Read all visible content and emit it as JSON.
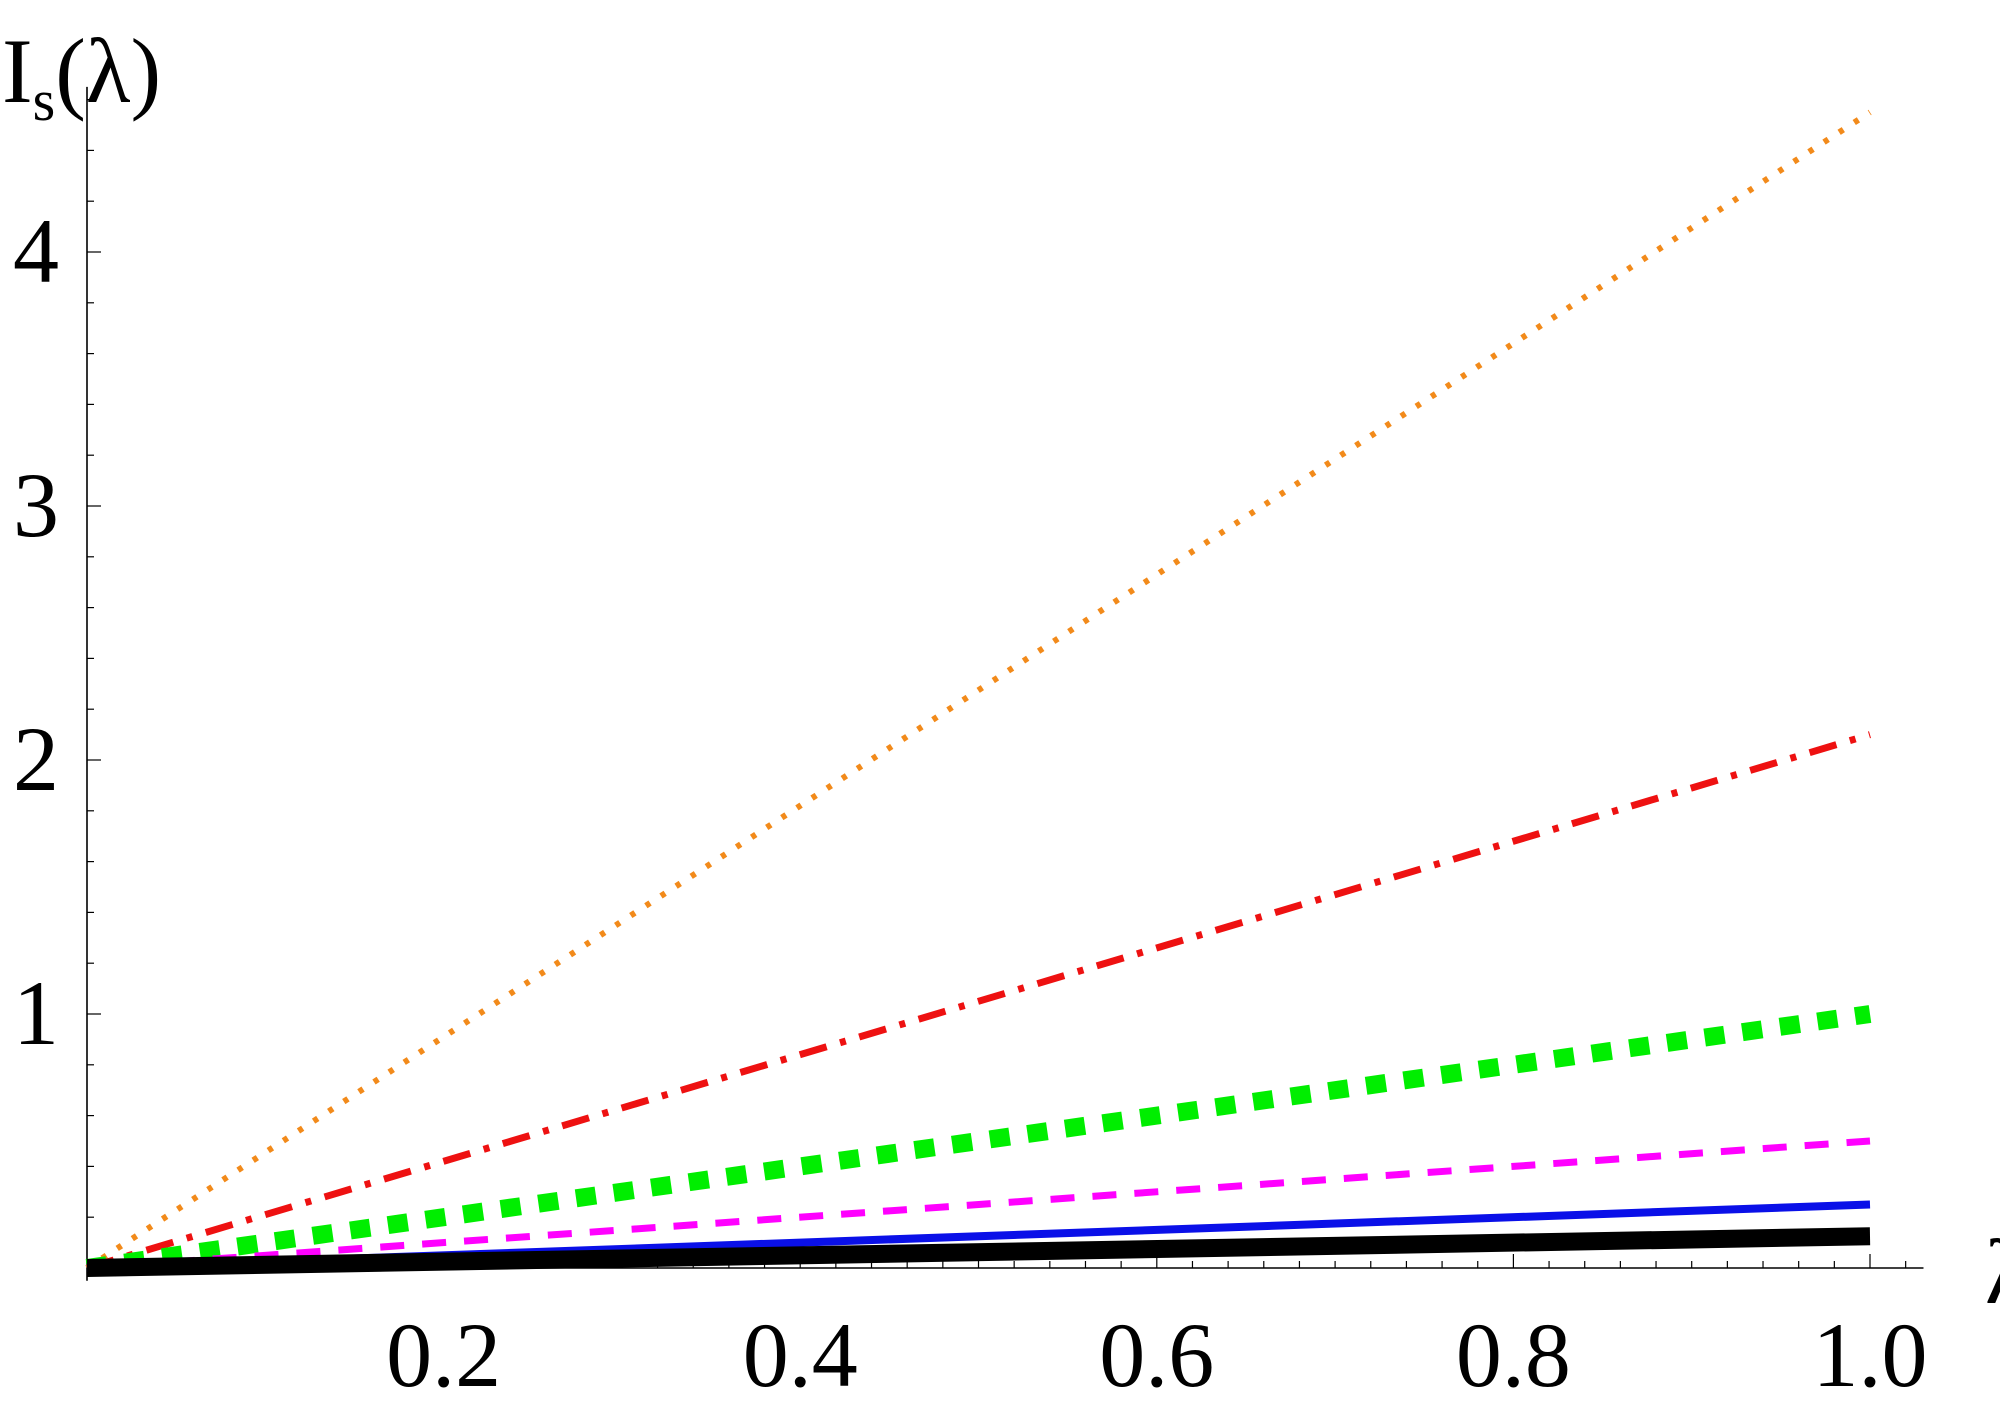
{
  "chart_data": {
    "type": "line",
    "xlabel": "λ",
    "ylabel": {
      "main": "I",
      "sub": "s",
      "arg": "(λ)"
    },
    "xlim": [
      0,
      1.03
    ],
    "ylim": [
      -0.05,
      4.65
    ],
    "x_ticks": [
      0.2,
      0.4,
      0.6,
      0.8,
      1.0
    ],
    "x_tick_labels": [
      "0.2",
      "0.4",
      "0.6",
      "0.8",
      "1.0"
    ],
    "y_ticks": [
      1,
      2,
      3,
      4
    ],
    "y_tick_labels": [
      "1",
      "2",
      "3",
      "4"
    ],
    "grid": false,
    "legend": "none",
    "series": [
      {
        "x": [
          0,
          1
        ],
        "values": [
          0,
          0.125
        ],
        "color": "#000000",
        "style": "solid-thick"
      },
      {
        "x": [
          0,
          1
        ],
        "values": [
          0,
          0.25
        ],
        "color": "#0a10e8",
        "style": "solid"
      },
      {
        "x": [
          0,
          1
        ],
        "values": [
          0,
          0.5
        ],
        "color": "#ff00ff",
        "style": "dashed"
      },
      {
        "x": [
          0,
          1
        ],
        "values": [
          0,
          1.0
        ],
        "color": "#00ee00",
        "style": "dashed-thick"
      },
      {
        "x": [
          0,
          1
        ],
        "values": [
          0,
          2.1
        ],
        "color": "#ee1111",
        "style": "dashdot"
      },
      {
        "x": [
          0,
          1
        ],
        "values": [
          0,
          4.55
        ],
        "color": "#f28a1a",
        "style": "dotted"
      }
    ]
  }
}
